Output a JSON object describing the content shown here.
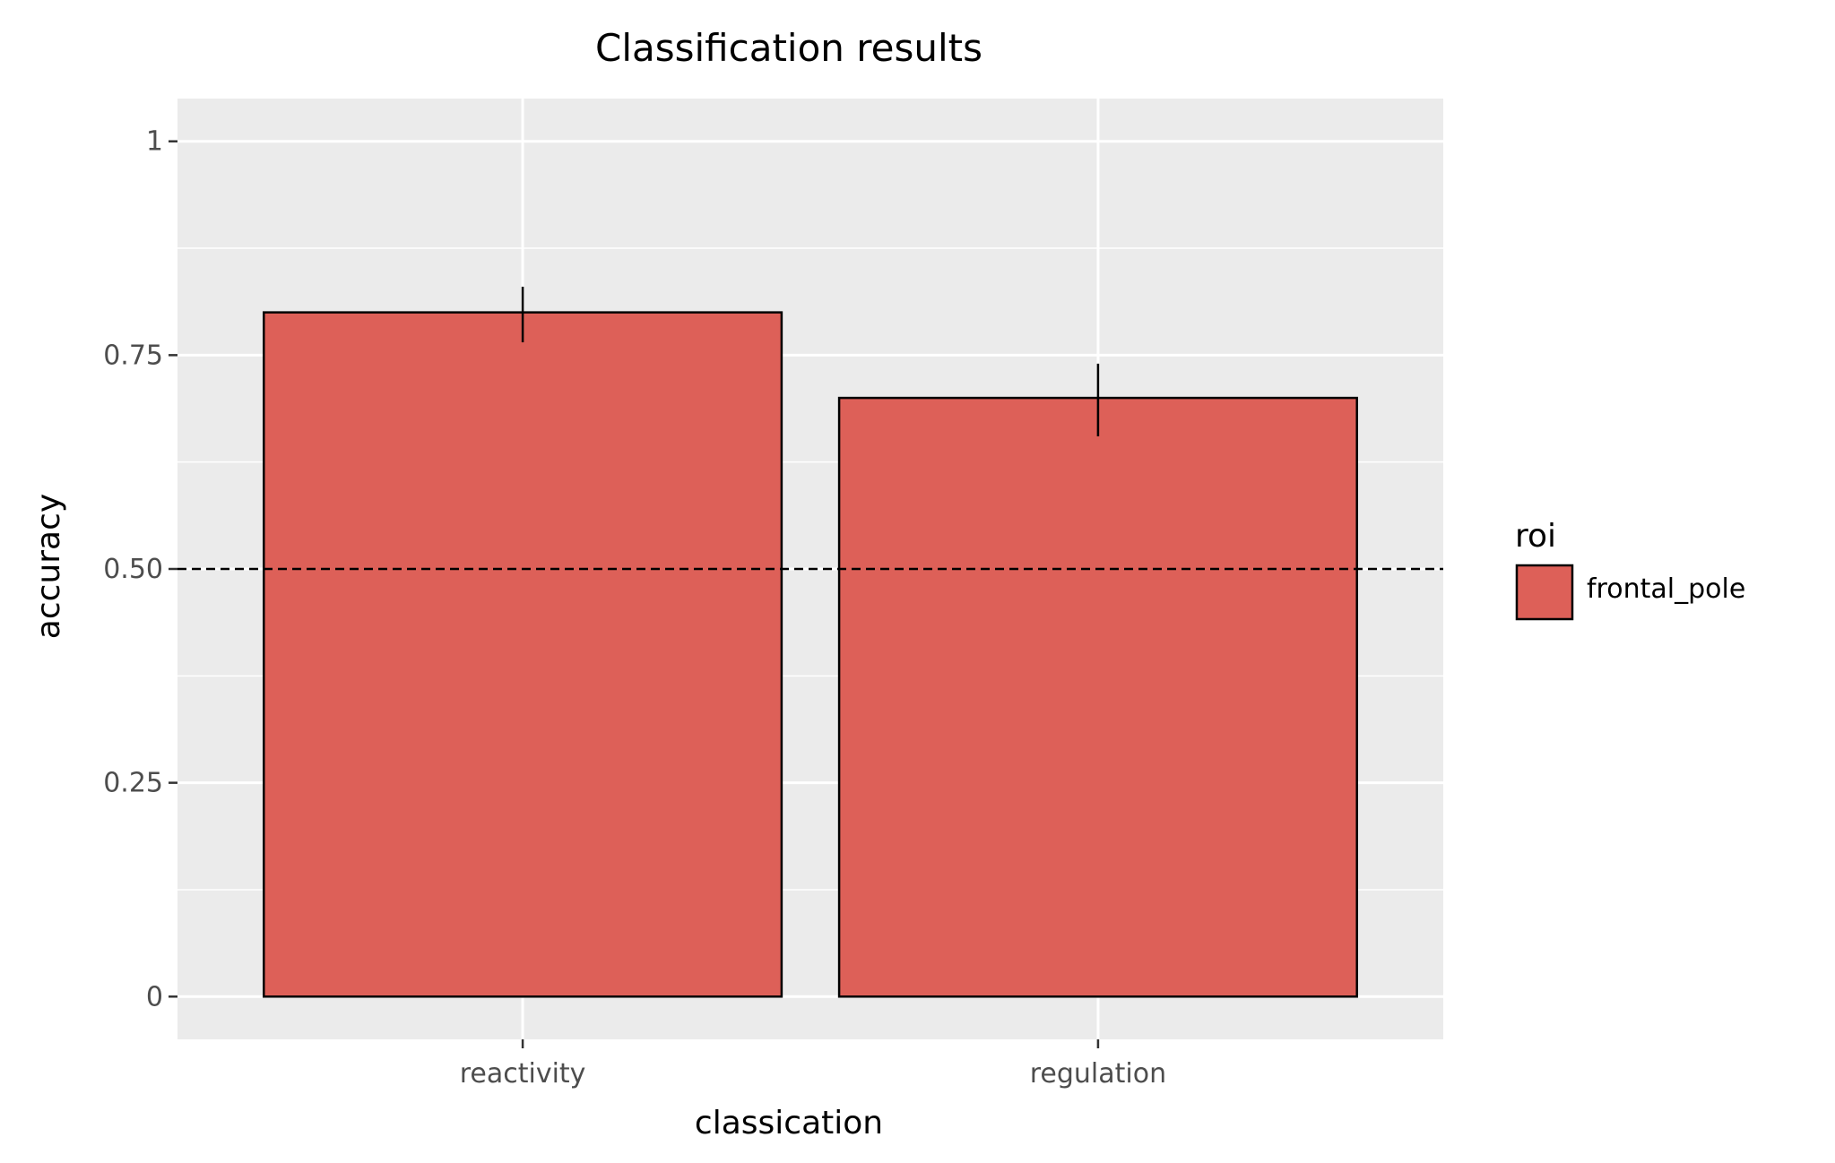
{
  "chart_data": {
    "type": "bar",
    "title": "Classification results",
    "xlabel": "classication",
    "ylabel": "accuracy",
    "categories": [
      "reactivity",
      "regulation"
    ],
    "series": [
      {
        "name": "frontal_pole",
        "values": [
          0.8,
          0.7
        ],
        "error_low": [
          0.765,
          0.655
        ],
        "error_high": [
          0.83,
          0.74
        ],
        "color": "#dd6058"
      }
    ],
    "reference_line": {
      "y": 0.5,
      "style": "dashed",
      "color": "#000000"
    },
    "ylim": [
      -0.05,
      1.05
    ],
    "yticks": [
      0,
      0.25,
      0.5,
      0.75,
      1
    ],
    "ytick_labels": [
      "0",
      "0.25",
      "0.50",
      "0.75",
      "1"
    ],
    "grid": true,
    "panel_background": "#ebebeb",
    "legend": {
      "title": "roi",
      "position": "right",
      "entries": [
        "frontal_pole"
      ]
    }
  }
}
